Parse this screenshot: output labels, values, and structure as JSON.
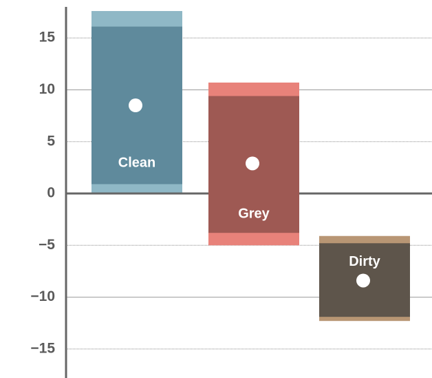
{
  "chart_data": {
    "type": "range_bar",
    "categories": [
      "Clean",
      "Grey",
      "Dirty"
    ],
    "outer_low": [
      0.1,
      -5.0,
      -12.3
    ],
    "outer_high": [
      17.6,
      10.7,
      -4.1
    ],
    "inner_low": [
      0.9,
      -3.8,
      -11.9
    ],
    "inner_high": [
      16.1,
      9.4,
      -4.8
    ],
    "mean": [
      8.5,
      2.9,
      -8.4
    ],
    "outer_colors": [
      "#8fb8c6",
      "#e8827a",
      "#b89674"
    ],
    "inner_colors": [
      "#5f8a9c",
      "#9e5953",
      "#5e554b"
    ],
    "ylim": [
      -17.8,
      18
    ],
    "yticks": [
      {
        "value": -15,
        "label": "−15"
      },
      {
        "value": -10,
        "label": "−10"
      },
      {
        "value": -5,
        "label": "−5"
      },
      0,
      5,
      10,
      15
    ],
    "grid": true
  }
}
